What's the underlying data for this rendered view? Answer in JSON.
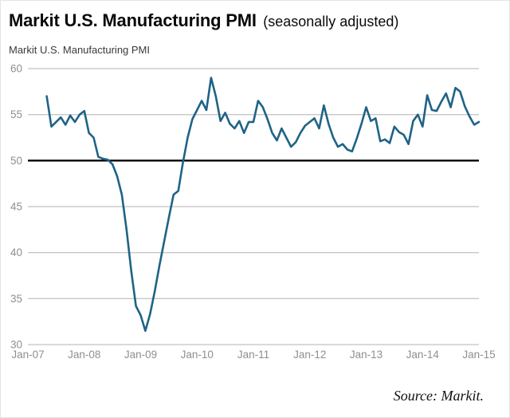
{
  "page": {
    "title": "Markit U.S. Manufacturing PMI",
    "title_suffix": "(seasonally adjusted)",
    "subtitle": "Markit U.S. Manufacturing PMI",
    "source": "Source: Markit."
  },
  "chart_data": {
    "type": "line",
    "title": "Markit U.S. Manufacturing PMI (seasonally adjusted)",
    "series_name": "Markit U.S. Manufacturing PMI",
    "x_tick_labels": [
      "Jan-07",
      "Jan-08",
      "Jan-09",
      "Jan-10",
      "Jan-11",
      "Jan-12",
      "Jan-13",
      "Jan-14",
      "Jan-15"
    ],
    "x_domain_months": 97,
    "first_point_month_index": 4,
    "first_point_month": "May-07",
    "values": [
      57.0,
      53.7,
      54.2,
      54.7,
      53.9,
      54.9,
      54.2,
      55.0,
      55.4,
      53.0,
      52.5,
      50.4,
      50.2,
      50.1,
      49.6,
      48.3,
      46.3,
      42.5,
      38.0,
      34.2,
      33.2,
      31.5,
      33.3,
      35.8,
      38.6,
      41.2,
      43.8,
      46.3,
      46.7,
      49.8,
      52.5,
      54.5,
      55.5,
      56.5,
      55.5,
      59.0,
      57.0,
      54.3,
      55.2,
      54.0,
      53.5,
      54.3,
      53.0,
      54.2,
      54.2,
      56.5,
      55.8,
      54.5,
      53.0,
      52.2,
      53.5,
      52.5,
      51.5,
      52.0,
      53.0,
      53.8,
      54.2,
      54.6,
      53.5,
      56.0,
      54.0,
      52.5,
      51.5,
      51.8,
      51.2,
      51.0,
      52.4,
      54.0,
      55.8,
      54.3,
      54.6,
      52.1,
      52.3,
      51.9,
      53.7,
      53.1,
      52.8,
      51.8,
      54.3,
      55.0,
      53.7,
      57.1,
      55.5,
      55.4,
      56.4,
      57.3,
      55.8,
      57.9,
      57.5,
      55.9,
      54.8,
      53.9,
      54.2
    ],
    "ylim": [
      30,
      60
    ],
    "y_ticks": [
      30,
      35,
      40,
      45,
      50,
      55,
      60
    ],
    "reference_line": 50,
    "line_color": "#1f6386",
    "grid_color": "#b3b3b3",
    "reference_line_color": "#000000",
    "tick_label_color": "#8f8f8f",
    "grid": true,
    "legend": "none"
  }
}
